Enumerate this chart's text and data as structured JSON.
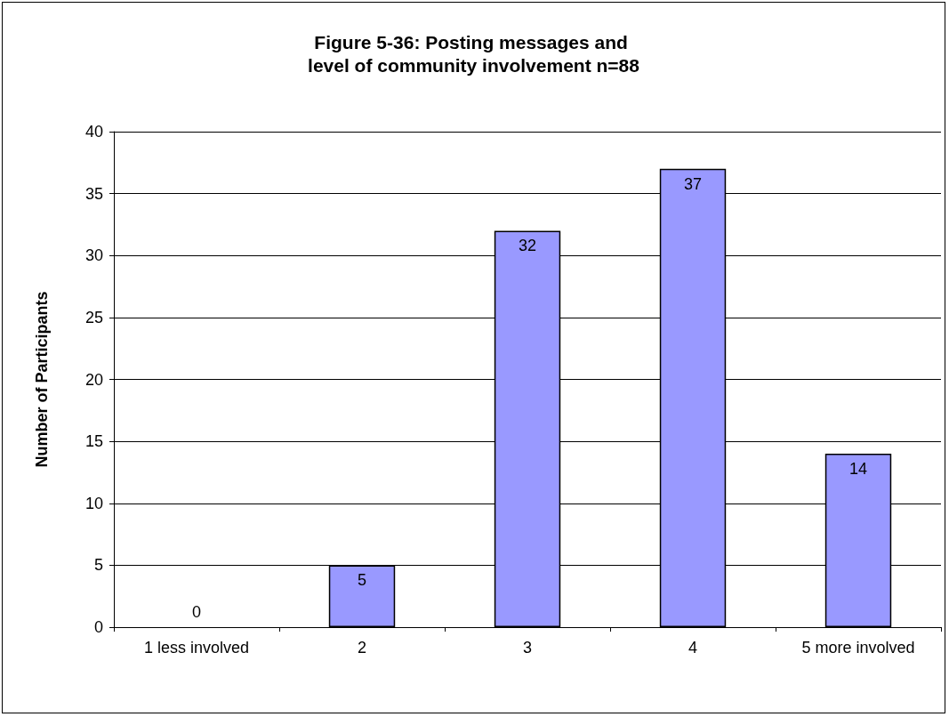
{
  "chart_data": {
    "type": "bar",
    "title": "Figure 5-36: Posting messages and level of community involvement n=88",
    "ylabel": "Number of Participants",
    "categories": [
      "1 less involved",
      "2",
      "3",
      "4",
      "5 more involved"
    ],
    "values": [
      0,
      5,
      32,
      37,
      14
    ],
    "color": "#9999ff",
    "ylim": [
      0,
      40
    ],
    "yticks": [
      0,
      5,
      10,
      15,
      20,
      25,
      30,
      35,
      40
    ],
    "grid": "y",
    "data_labels": true
  }
}
